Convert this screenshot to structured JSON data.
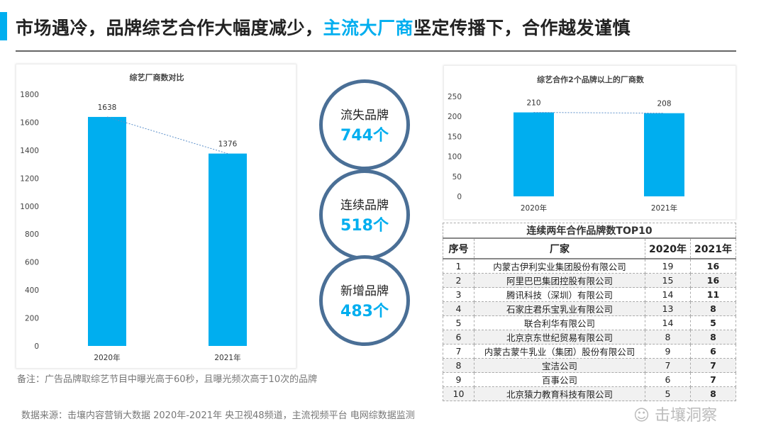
{
  "header": {
    "title_part1": "市场遇冷，品牌综艺合作大幅度减少，",
    "title_highlight": "主流大厂商",
    "title_part2": "坚定传播下，合作越发谨慎",
    "accent_color": "#00aeef"
  },
  "chart_data": [
    {
      "type": "bar",
      "title": "综艺厂商数对比",
      "categories": [
        "2020年",
        "2021年"
      ],
      "values": [
        1638,
        1376
      ],
      "ylim": [
        0,
        1800
      ],
      "yticks": [
        0,
        200,
        400,
        600,
        800,
        1000,
        1200,
        1400,
        1600,
        1800
      ],
      "trendline": "dotted",
      "color": "#00aeef"
    },
    {
      "type": "bar",
      "title": "综艺合作2个品牌以上的厂商数",
      "categories": [
        "2020年",
        "2021年"
      ],
      "values": [
        210,
        208
      ],
      "ylim": [
        0,
        250
      ],
      "yticks": [
        0,
        50,
        100,
        150,
        200,
        250
      ],
      "trendline": "dotted",
      "color": "#00aeef"
    }
  ],
  "circles": [
    {
      "label": "流失品牌",
      "value": "744个"
    },
    {
      "label": "连续品牌",
      "value": "518个"
    },
    {
      "label": "新增品牌",
      "value": "483个"
    }
  ],
  "table": {
    "title": "连续两年合作品牌数TOP10",
    "headers": [
      "序号",
      "厂家",
      "2020年",
      "2021年"
    ],
    "rows": [
      [
        "1",
        "内蒙古伊利实业集团股份有限公司",
        "19",
        "16"
      ],
      [
        "2",
        "阿里巴巴集团控股有限公司",
        "15",
        "16"
      ],
      [
        "3",
        "腾讯科技（深圳）有限公司",
        "14",
        "11"
      ],
      [
        "4",
        "石家庄君乐宝乳业有限公司",
        "13",
        "8"
      ],
      [
        "5",
        "联合利华有限公司",
        "14",
        "5"
      ],
      [
        "6",
        "北京京东世纪贸易有限公司",
        "8",
        "8"
      ],
      [
        "7",
        "内蒙古蒙牛乳业（集团）股份有限公司",
        "9",
        "6"
      ],
      [
        "8",
        "宝洁公司",
        "7",
        "7"
      ],
      [
        "9",
        "百事公司",
        "6",
        "7"
      ],
      [
        "10",
        "北京猿力教育科技有限公司",
        "5",
        "8"
      ]
    ]
  },
  "note": "备注：广告品牌取综艺节目中曝光高于60秒，且曝光频次高于10次的品牌",
  "source": "数据来源：击壤内容营销大数据 2020年-2021年  央卫视48频道，主流视频平台 电网综数据监测",
  "watermark": "击壤洞察"
}
